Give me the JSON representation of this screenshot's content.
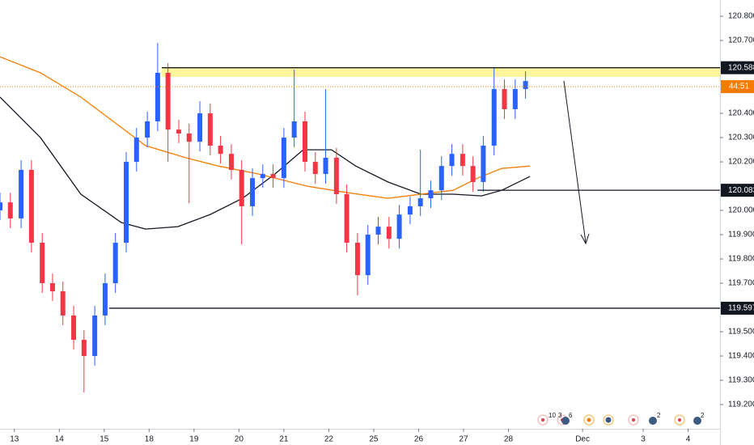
{
  "chart_data": {
    "type": "candlestick",
    "up_color": "#2962ff",
    "down_color": "#f23645",
    "xlim": [
      -0.32,
      15.71
    ],
    "ylim": [
      119.1,
      120.867
    ],
    "xticks": [
      {
        "value": 0,
        "label": "13"
      },
      {
        "value": 1,
        "label": "14"
      },
      {
        "value": 2,
        "label": "15"
      },
      {
        "value": 3,
        "label": "18"
      },
      {
        "value": 4,
        "label": "19"
      },
      {
        "value": 5,
        "label": "20"
      },
      {
        "value": 6,
        "label": "21"
      },
      {
        "value": 7,
        "label": "22"
      },
      {
        "value": 8,
        "label": "25"
      },
      {
        "value": 9,
        "label": "26"
      },
      {
        "value": 10,
        "label": "27"
      },
      {
        "value": 11,
        "label": "28"
      },
      {
        "value": 12.65,
        "label": "Dec"
      },
      {
        "value": 14,
        "label": "3"
      },
      {
        "value": 15,
        "label": "4"
      }
    ],
    "yticks": [
      {
        "value": 120.8,
        "label": "120.800"
      },
      {
        "value": 120.7,
        "label": "120.700"
      },
      {
        "value": 120.4,
        "label": "120.400"
      },
      {
        "value": 120.3,
        "label": "120.300"
      },
      {
        "value": 120.2,
        "label": "120.200"
      },
      {
        "value": 120.0,
        "label": "120.000"
      },
      {
        "value": 119.9,
        "label": "119.900"
      },
      {
        "value": 119.8,
        "label": "119.800"
      },
      {
        "value": 119.7,
        "label": "119.700"
      },
      {
        "value": 119.5,
        "label": "119.500"
      },
      {
        "value": 119.4,
        "label": "119.400"
      },
      {
        "value": 119.3,
        "label": "119.300"
      },
      {
        "value": 119.2,
        "label": "119.200"
      }
    ],
    "x": [
      -0.32,
      -0.09,
      0.15,
      0.38,
      0.62,
      0.85,
      1.08,
      1.32,
      1.55,
      1.79,
      2.02,
      2.25,
      2.49,
      2.72,
      2.96,
      3.19,
      3.42,
      3.66,
      3.89,
      4.13,
      4.36,
      4.59,
      4.83,
      5.06,
      5.3,
      5.53,
      5.76,
      6.0,
      6.23,
      6.47,
      6.7,
      6.93,
      7.17,
      7.4,
      7.64,
      7.87,
      8.1,
      8.34,
      8.57,
      8.81,
      9.04,
      9.27,
      9.51,
      9.74,
      9.98,
      10.21,
      10.44,
      10.68,
      10.91,
      11.15,
      11.38
    ],
    "open": [
      120.0,
      120.033,
      119.967,
      120.167,
      119.867,
      119.7,
      119.667,
      119.567,
      119.467,
      119.4,
      119.567,
      119.7,
      119.867,
      120.2,
      120.3,
      120.367,
      120.567,
      120.333,
      120.317,
      120.283,
      120.4,
      120.267,
      120.233,
      120.167,
      120.017,
      120.133,
      120.15,
      120.133,
      120.3,
      120.367,
      120.2,
      120.15,
      120.217,
      120.067,
      119.867,
      119.733,
      119.9,
      119.933,
      119.883,
      119.983,
      120.017,
      120.05,
      120.083,
      120.183,
      120.233,
      120.183,
      120.117,
      120.267,
      120.5,
      120.417,
      120.5
    ],
    "high": [
      120.073,
      120.073,
      120.207,
      120.207,
      119.907,
      119.74,
      119.707,
      119.607,
      119.507,
      119.607,
      119.74,
      119.907,
      120.24,
      120.34,
      120.407,
      120.69,
      120.607,
      120.373,
      120.357,
      120.45,
      120.44,
      120.307,
      120.273,
      120.207,
      120.173,
      120.19,
      120.19,
      120.34,
      120.58,
      120.407,
      120.24,
      120.5,
      120.257,
      120.107,
      119.907,
      119.94,
      119.973,
      119.973,
      120.023,
      120.057,
      120.25,
      120.123,
      120.223,
      120.273,
      120.273,
      120.223,
      120.307,
      120.588,
      120.54,
      120.54,
      120.573
    ],
    "low": [
      119.96,
      119.927,
      119.927,
      119.827,
      119.66,
      119.627,
      119.527,
      119.427,
      119.25,
      119.36,
      119.527,
      119.66,
      119.827,
      120.16,
      120.26,
      120.327,
      120.2,
      120.277,
      120.03,
      120.243,
      120.227,
      120.193,
      120.127,
      119.86,
      119.977,
      120.093,
      120.093,
      120.093,
      120.26,
      120.16,
      120.11,
      120.11,
      120.027,
      119.827,
      119.65,
      119.693,
      119.86,
      119.843,
      119.843,
      119.943,
      119.977,
      120.01,
      120.043,
      120.143,
      120.143,
      120.077,
      120.077,
      120.227,
      120.377,
      120.377,
      120.46
    ],
    "close": [
      120.033,
      119.967,
      120.167,
      119.867,
      119.7,
      119.667,
      119.567,
      119.467,
      119.4,
      119.567,
      119.7,
      119.867,
      120.2,
      120.3,
      120.367,
      120.567,
      120.333,
      120.317,
      120.283,
      120.4,
      120.267,
      120.233,
      120.167,
      120.017,
      120.133,
      120.15,
      120.133,
      120.3,
      120.367,
      120.2,
      120.15,
      120.217,
      120.067,
      119.867,
      119.733,
      119.9,
      119.933,
      119.883,
      119.983,
      120.017,
      120.05,
      120.083,
      120.183,
      120.233,
      120.183,
      120.117,
      120.267,
      120.5,
      120.417,
      120.5,
      120.533
    ],
    "lines": [
      {
        "color": "#131722",
        "x": [
          -0.32,
          0.58,
          1.48,
          2.38,
          2.92,
          3.64,
          4.36,
          5.08,
          5.8,
          6.43,
          7.06,
          7.6,
          8.32,
          9.05,
          9.77,
          10.4,
          10.85,
          11.48
        ],
        "values": [
          120.467,
          120.3,
          120.067,
          119.95,
          119.923,
          119.933,
          119.983,
          120.05,
          120.15,
          120.25,
          120.25,
          120.183,
          120.117,
          120.067,
          120.067,
          120.06,
          120.083,
          120.14
        ]
      },
      {
        "color": "#f57c00",
        "x": [
          -0.32,
          0.58,
          1.48,
          2.2,
          2.92,
          3.82,
          4.54,
          5.44,
          6.52,
          7.42,
          8.32,
          9.05,
          9.77,
          10.31,
          10.85,
          11.48
        ],
        "values": [
          120.633,
          120.567,
          120.467,
          120.367,
          120.267,
          120.217,
          120.183,
          120.15,
          120.1,
          120.073,
          120.05,
          120.067,
          120.083,
          120.133,
          120.173,
          120.183
        ]
      }
    ],
    "zone": {
      "color": "#fff59d",
      "x": 3.28,
      "values": [
        120.55,
        120.588
      ]
    },
    "levels": [
      {
        "x": 3.28,
        "value": 120.588
      },
      {
        "x": 10.31,
        "value": 120.083
      },
      {
        "x": 2.11,
        "value": 119.597
      }
    ],
    "current": {
      "value": 120.51,
      "label": "44:51",
      "color": "#f57c00"
    },
    "events": [
      "10",
      "3",
      "6",
      "2",
      "2"
    ]
  }
}
